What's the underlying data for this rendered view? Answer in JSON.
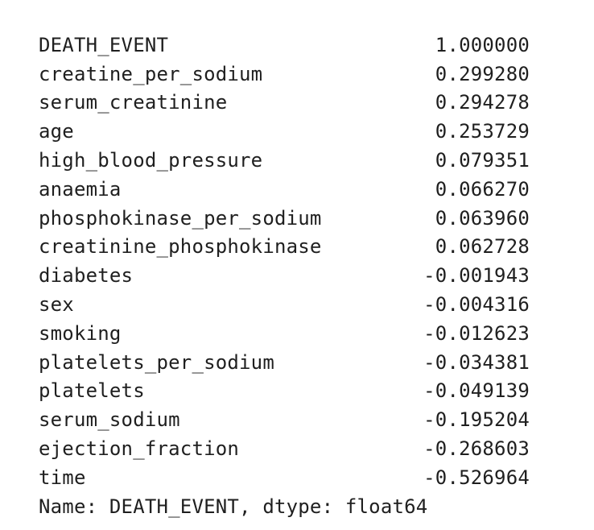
{
  "series": {
    "rows": [
      {
        "name": "DEATH_EVENT",
        "value": "1.000000"
      },
      {
        "name": "creatine_per_sodium",
        "value": "0.299280"
      },
      {
        "name": "serum_creatinine",
        "value": "0.294278"
      },
      {
        "name": "age",
        "value": "0.253729"
      },
      {
        "name": "high_blood_pressure",
        "value": "0.079351"
      },
      {
        "name": "anaemia",
        "value": "0.066270"
      },
      {
        "name": "phosphokinase_per_sodium",
        "value": "0.063960"
      },
      {
        "name": "creatinine_phosphokinase",
        "value": "0.062728"
      },
      {
        "name": "diabetes",
        "value": "-0.001943"
      },
      {
        "name": "sex",
        "value": "-0.004316"
      },
      {
        "name": "smoking",
        "value": "-0.012623"
      },
      {
        "name": "platelets_per_sodium",
        "value": "-0.034381"
      },
      {
        "name": "platelets",
        "value": "-0.049139"
      },
      {
        "name": "serum_sodium",
        "value": "-0.195204"
      },
      {
        "name": "ejection_fraction",
        "value": "-0.268603"
      },
      {
        "name": "time",
        "value": "-0.526964"
      }
    ],
    "footer": "Name: DEATH_EVENT, dtype: float64"
  }
}
